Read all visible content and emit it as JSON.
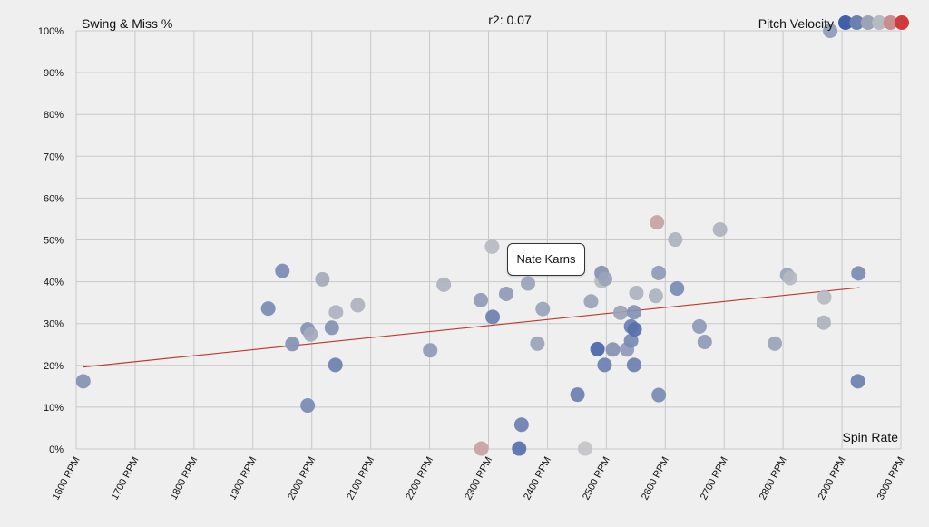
{
  "chart_data": {
    "type": "scatter",
    "title": "r2: 0.07",
    "ylabel": "Swing & Miss %",
    "xlabel": "Spin Rate",
    "legend_title": "Pitch Velocity",
    "legend_colors": [
      "#3f5fa8",
      "#6b80b0",
      "#9aa3b8",
      "#b7bac1",
      "#c98d8d",
      "#d13a3a"
    ],
    "grid": true,
    "xlim": [
      1600,
      3000
    ],
    "ylim": [
      0,
      100
    ],
    "x_ticks": [
      "1600 RPM",
      "1700 RPM",
      "1800 RPM",
      "1900 RPM",
      "2000 RPM",
      "2100 RPM",
      "2200 RPM",
      "2300 RPM",
      "2400 RPM",
      "2500 RPM",
      "2600 RPM",
      "2700 RPM",
      "2800 RPM",
      "2900 RPM",
      "3000 RPM"
    ],
    "y_ticks": [
      "0%",
      "10%",
      "20%",
      "30%",
      "40%",
      "50%",
      "60%",
      "70%",
      "80%",
      "90%",
      "100%"
    ],
    "trendline": {
      "x": [
        1612,
        2930
      ],
      "y": [
        19.6,
        38.6
      ],
      "color": "#c0392b"
    },
    "tooltip": "Nate Karns",
    "points": [
      {
        "x": 1612,
        "y": 16.2,
        "color": "#8391b2"
      },
      {
        "x": 1926,
        "y": 33.6,
        "color": "#7a8bb3"
      },
      {
        "x": 1950,
        "y": 42.6,
        "color": "#7a8bb3"
      },
      {
        "x": 1967,
        "y": 25.1,
        "color": "#8391b2"
      },
      {
        "x": 1993,
        "y": 28.6,
        "color": "#8391b2"
      },
      {
        "x": 1998,
        "y": 27.4,
        "color": "#a3aaba"
      },
      {
        "x": 1993,
        "y": 10.4,
        "color": "#7a8bb3"
      },
      {
        "x": 2018,
        "y": 40.6,
        "color": "#a3aaba"
      },
      {
        "x": 2034,
        "y": 29.0,
        "color": "#8391b2"
      },
      {
        "x": 2041,
        "y": 32.7,
        "color": "#aeb2bd"
      },
      {
        "x": 2040,
        "y": 20.1,
        "color": "#6b80b0"
      },
      {
        "x": 2078,
        "y": 34.4,
        "color": "#aeb2bd"
      },
      {
        "x": 2201,
        "y": 23.6,
        "color": "#8f9ab6"
      },
      {
        "x": 2224,
        "y": 39.3,
        "color": "#aeb2bd"
      },
      {
        "x": 2287,
        "y": 35.6,
        "color": "#8f9ab6"
      },
      {
        "x": 2288,
        "y": 0.1,
        "color": "#c4a2a2"
      },
      {
        "x": 2306,
        "y": 48.4,
        "color": "#b7bac1"
      },
      {
        "x": 2307,
        "y": 31.6,
        "color": "#6b80b0"
      },
      {
        "x": 2330,
        "y": 37.1,
        "color": "#8f9ab6"
      },
      {
        "x": 2352,
        "y": 0.1,
        "color": "#5670ab"
      },
      {
        "x": 2356,
        "y": 5.8,
        "color": "#6b80b0"
      },
      {
        "x": 2367,
        "y": 39.6,
        "color": "#9aa3b8"
      },
      {
        "x": 2383,
        "y": 25.2,
        "color": "#9aa3b8"
      },
      {
        "x": 2392,
        "y": 33.5,
        "color": "#9aa3b8"
      },
      {
        "x": 2451,
        "y": 13.0,
        "color": "#6b80b0"
      },
      {
        "x": 2464,
        "y": 0.1,
        "color": "#c4c4c8"
      },
      {
        "x": 2474,
        "y": 35.3,
        "color": "#9aa3b8"
      },
      {
        "x": 2485,
        "y": 23.9,
        "color": "#4a65a8"
      },
      {
        "x": 2492,
        "y": 40.2,
        "color": "#b7bac1"
      },
      {
        "x": 2492,
        "y": 42.1,
        "color": "#8391b2"
      },
      {
        "x": 2497,
        "y": 20.1,
        "color": "#6b80b0"
      },
      {
        "x": 2498,
        "y": 40.7,
        "color": "#9aa3b8"
      },
      {
        "x": 2511,
        "y": 23.8,
        "color": "#8391b2"
      },
      {
        "x": 2524,
        "y": 32.6,
        "color": "#9aa3b8"
      },
      {
        "x": 2535,
        "y": 23.8,
        "color": "#8f9ab6"
      },
      {
        "x": 2542,
        "y": 25.9,
        "color": "#7a8bb3"
      },
      {
        "x": 2542,
        "y": 29.3,
        "color": "#6b80b0"
      },
      {
        "x": 2547,
        "y": 20.1,
        "color": "#6b80b0"
      },
      {
        "x": 2547,
        "y": 32.7,
        "color": "#8391b2"
      },
      {
        "x": 2548,
        "y": 28.6,
        "color": "#5670ab"
      },
      {
        "x": 2551,
        "y": 37.3,
        "color": "#aeb2bd"
      },
      {
        "x": 2584,
        "y": 36.6,
        "color": "#aeb2bd"
      },
      {
        "x": 2586,
        "y": 54.2,
        "color": "#c4a2a2"
      },
      {
        "x": 2589,
        "y": 42.1,
        "color": "#8f9ab6"
      },
      {
        "x": 2589,
        "y": 12.9,
        "color": "#7a8bb3"
      },
      {
        "x": 2617,
        "y": 50.1,
        "color": "#aeb2bd"
      },
      {
        "x": 2620,
        "y": 38.4,
        "color": "#7a8bb3"
      },
      {
        "x": 2658,
        "y": 29.3,
        "color": "#8f9ab6"
      },
      {
        "x": 2667,
        "y": 25.6,
        "color": "#8f9ab6"
      },
      {
        "x": 2693,
        "y": 52.5,
        "color": "#aeb2bd"
      },
      {
        "x": 2786,
        "y": 25.2,
        "color": "#9aa3b8"
      },
      {
        "x": 2807,
        "y": 41.6,
        "color": "#9aa3b8"
      },
      {
        "x": 2812,
        "y": 40.9,
        "color": "#b7bac1"
      },
      {
        "x": 2870,
        "y": 36.3,
        "color": "#b7bac1"
      },
      {
        "x": 2869,
        "y": 30.2,
        "color": "#aeb2bd"
      },
      {
        "x": 2880,
        "y": 100.0,
        "color": "#8f9ab6"
      },
      {
        "x": 2928,
        "y": 42.0,
        "color": "#7a8bb3"
      },
      {
        "x": 2927,
        "y": 16.2,
        "color": "#6b80b0"
      }
    ]
  }
}
